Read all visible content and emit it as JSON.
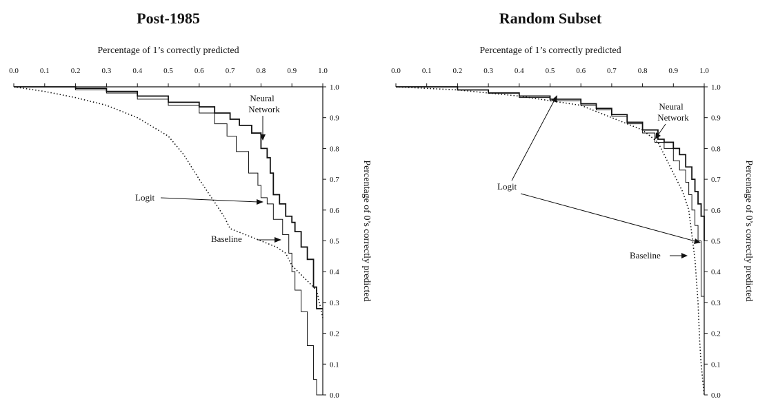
{
  "chart_data": [
    {
      "type": "line",
      "title": "Post-1985",
      "xlabel": "Percentage of 1’s correctly predicted",
      "ylabel": "Percentage of 0’s correctly predicted",
      "xlim": [
        0,
        1
      ],
      "ylim": [
        0,
        1
      ],
      "x_ticks": [
        "0.0",
        "0.1",
        "0.2",
        "0.3",
        "0.4",
        "0.5",
        "0.6",
        "0.7",
        "0.8",
        "0.9",
        "1.0"
      ],
      "y_ticks": [
        "0.0",
        "0.1",
        "0.2",
        "0.3",
        "0.4",
        "0.5",
        "0.6",
        "0.7",
        "0.8",
        "0.9",
        "1.0"
      ],
      "series": [
        {
          "name": "Neural Network",
          "style": "step-bold",
          "points": [
            [
              0,
              1.0
            ],
            [
              0.2,
              0.995
            ],
            [
              0.3,
              0.985
            ],
            [
              0.4,
              0.97
            ],
            [
              0.5,
              0.95
            ],
            [
              0.6,
              0.935
            ],
            [
              0.65,
              0.915
            ],
            [
              0.7,
              0.895
            ],
            [
              0.73,
              0.875
            ],
            [
              0.77,
              0.85
            ],
            [
              0.8,
              0.8
            ],
            [
              0.82,
              0.77
            ],
            [
              0.83,
              0.72
            ],
            [
              0.84,
              0.65
            ],
            [
              0.86,
              0.62
            ],
            [
              0.88,
              0.58
            ],
            [
              0.9,
              0.56
            ],
            [
              0.91,
              0.53
            ],
            [
              0.93,
              0.48
            ],
            [
              0.95,
              0.44
            ],
            [
              0.97,
              0.35
            ],
            [
              0.98,
              0.28
            ],
            [
              1.0,
              0.28
            ]
          ]
        },
        {
          "name": "Logit",
          "style": "step-thin",
          "points": [
            [
              0,
              1.0
            ],
            [
              0.2,
              0.99
            ],
            [
              0.3,
              0.98
            ],
            [
              0.4,
              0.96
            ],
            [
              0.5,
              0.94
            ],
            [
              0.6,
              0.915
            ],
            [
              0.65,
              0.88
            ],
            [
              0.69,
              0.84
            ],
            [
              0.72,
              0.79
            ],
            [
              0.76,
              0.72
            ],
            [
              0.79,
              0.68
            ],
            [
              0.8,
              0.64
            ],
            [
              0.82,
              0.62
            ],
            [
              0.84,
              0.57
            ],
            [
              0.87,
              0.52
            ],
            [
              0.89,
              0.46
            ],
            [
              0.9,
              0.4
            ],
            [
              0.91,
              0.34
            ],
            [
              0.93,
              0.27
            ],
            [
              0.95,
              0.16
            ],
            [
              0.97,
              0.05
            ],
            [
              0.98,
              0.0
            ],
            [
              1.0,
              0.0
            ]
          ]
        },
        {
          "name": "Baseline",
          "style": "dotted",
          "points": [
            [
              0,
              1.0
            ],
            [
              0.1,
              0.985
            ],
            [
              0.2,
              0.965
            ],
            [
              0.3,
              0.94
            ],
            [
              0.4,
              0.9
            ],
            [
              0.5,
              0.84
            ],
            [
              0.55,
              0.78
            ],
            [
              0.6,
              0.7
            ],
            [
              0.64,
              0.64
            ],
            [
              0.68,
              0.58
            ],
            [
              0.7,
              0.54
            ],
            [
              0.75,
              0.52
            ],
            [
              0.8,
              0.5
            ],
            [
              0.85,
              0.48
            ],
            [
              0.88,
              0.46
            ],
            [
              0.9,
              0.42
            ],
            [
              0.92,
              0.4
            ],
            [
              0.95,
              0.37
            ],
            [
              0.98,
              0.34
            ],
            [
              1.0,
              0.25
            ]
          ]
        }
      ],
      "annotations": {
        "nn_label_line1": "Neural",
        "nn_label_line2": "Network",
        "logit_label": "Logit",
        "baseline_label": "Baseline"
      }
    },
    {
      "type": "line",
      "title": "Random Subset",
      "xlabel": "Percentage of 1’s correctly predicted",
      "ylabel": "Percentage of 0’s correctly predicted",
      "xlim": [
        0,
        1
      ],
      "ylim": [
        0,
        1
      ],
      "x_ticks": [
        "0.0",
        "0.1",
        "0.2",
        "0.3",
        "0.4",
        "0.5",
        "0.6",
        "0.7",
        "0.8",
        "0.9",
        "1.0"
      ],
      "y_ticks": [
        "0.0",
        "0.1",
        "0.2",
        "0.3",
        "0.4",
        "0.5",
        "0.6",
        "0.7",
        "0.8",
        "0.9",
        "1.0"
      ],
      "series": [
        {
          "name": "Neural Network",
          "style": "step-bold",
          "points": [
            [
              0,
              1.0
            ],
            [
              0.2,
              0.99
            ],
            [
              0.3,
              0.98
            ],
            [
              0.4,
              0.97
            ],
            [
              0.5,
              0.96
            ],
            [
              0.6,
              0.945
            ],
            [
              0.65,
              0.93
            ],
            [
              0.7,
              0.91
            ],
            [
              0.75,
              0.885
            ],
            [
              0.8,
              0.86
            ],
            [
              0.85,
              0.83
            ],
            [
              0.87,
              0.82
            ],
            [
              0.9,
              0.8
            ],
            [
              0.92,
              0.78
            ],
            [
              0.94,
              0.74
            ],
            [
              0.96,
              0.7
            ],
            [
              0.97,
              0.66
            ],
            [
              0.98,
              0.62
            ],
            [
              0.99,
              0.58
            ],
            [
              1.0,
              0.5
            ]
          ]
        },
        {
          "name": "Logit",
          "style": "step-thin",
          "points": [
            [
              0,
              1.0
            ],
            [
              0.2,
              0.99
            ],
            [
              0.3,
              0.98
            ],
            [
              0.4,
              0.965
            ],
            [
              0.5,
              0.955
            ],
            [
              0.6,
              0.94
            ],
            [
              0.65,
              0.925
            ],
            [
              0.7,
              0.905
            ],
            [
              0.75,
              0.88
            ],
            [
              0.8,
              0.85
            ],
            [
              0.84,
              0.82
            ],
            [
              0.87,
              0.8
            ],
            [
              0.9,
              0.76
            ],
            [
              0.92,
              0.73
            ],
            [
              0.94,
              0.69
            ],
            [
              0.95,
              0.65
            ],
            [
              0.96,
              0.6
            ],
            [
              0.97,
              0.55
            ],
            [
              0.98,
              0.5
            ],
            [
              0.99,
              0.32
            ],
            [
              1.0,
              0.3
            ]
          ]
        },
        {
          "name": "Baseline",
          "style": "dotted",
          "points": [
            [
              0,
              1.0
            ],
            [
              0.2,
              0.99
            ],
            [
              0.4,
              0.97
            ],
            [
              0.6,
              0.94
            ],
            [
              0.7,
              0.9
            ],
            [
              0.8,
              0.86
            ],
            [
              0.85,
              0.82
            ],
            [
              0.88,
              0.76
            ],
            [
              0.9,
              0.72
            ],
            [
              0.93,
              0.66
            ],
            [
              0.95,
              0.6
            ],
            [
              0.96,
              0.52
            ],
            [
              0.97,
              0.44
            ],
            [
              0.98,
              0.3
            ],
            [
              0.985,
              0.18
            ],
            [
              0.99,
              0.1
            ],
            [
              1.0,
              0.0
            ]
          ]
        }
      ],
      "annotations": {
        "nn_label_line1": "Neural",
        "nn_label_line2": "Network",
        "logit_label": "Logit",
        "baseline_label": "Baseline"
      }
    }
  ]
}
